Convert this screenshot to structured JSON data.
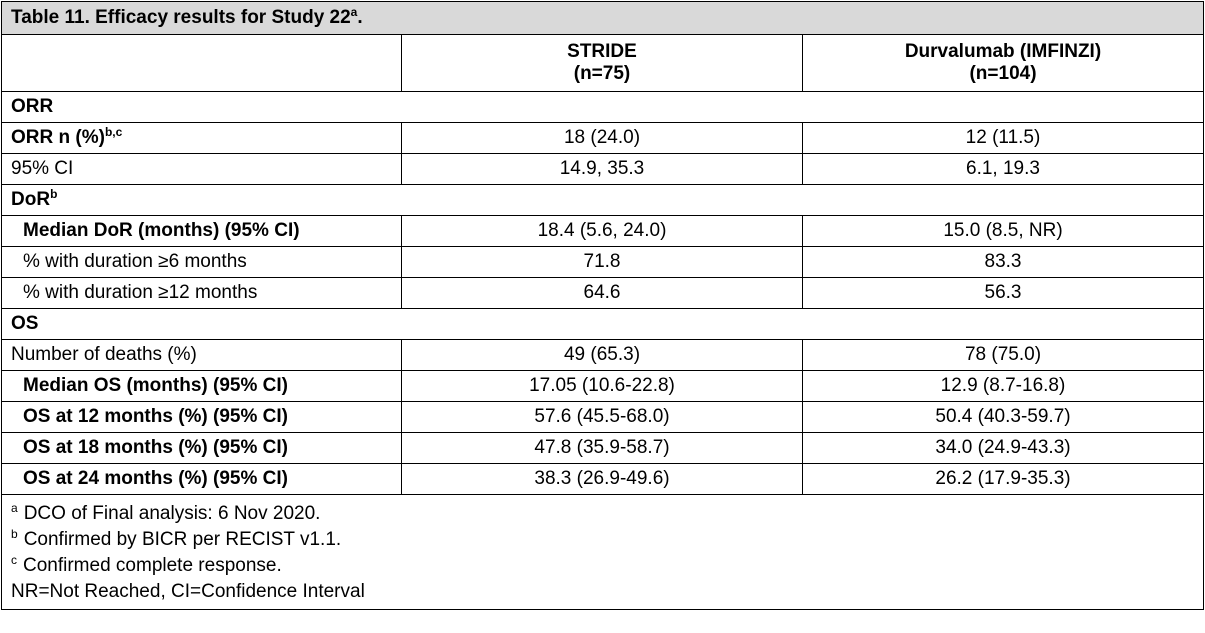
{
  "title": {
    "text": "Table 11. Efficacy results for Study 22",
    "sup": "a",
    "end": "."
  },
  "columns": [
    {
      "name": "STRIDE",
      "n": "(n=75)"
    },
    {
      "name": "Durvalumab (IMFINZI)",
      "n": "(n=104)"
    }
  ],
  "sections": {
    "orr": {
      "label": "ORR",
      "rows": [
        {
          "label": "ORR n (%)",
          "sup": "b,c",
          "v1": "18 (24.0)",
          "v2": "12 (11.5)"
        },
        {
          "label": "95% CI",
          "v1": "14.9, 35.3",
          "v2": "6.1, 19.3"
        }
      ]
    },
    "dor": {
      "label": "DoR",
      "sup": "b",
      "rows": [
        {
          "label": "Median DoR (months) (95% CI)",
          "v1": "18.4 (5.6, 24.0)",
          "v2": "15.0 (8.5, NR)"
        },
        {
          "label": "% with duration ≥6 months",
          "v1": "71.8",
          "v2": "83.3"
        },
        {
          "label": "% with duration ≥12 months",
          "v1": "64.6",
          "v2": "56.3"
        }
      ]
    },
    "os": {
      "label": "OS",
      "rows": [
        {
          "label": "Number of deaths (%)",
          "v1": "49 (65.3)",
          "v2": "78 (75.0)"
        },
        {
          "label": "Median OS (months) (95% CI)",
          "v1": "17.05 (10.6-22.8)",
          "v2": "12.9 (8.7-16.8)"
        },
        {
          "label": "OS at 12 months (%) (95% CI)",
          "v1": "57.6 (45.5-68.0)",
          "v2": "50.4 (40.3-59.7)"
        },
        {
          "label": "OS at 18 months (%) (95% CI)",
          "v1": "47.8 (35.9-58.7)",
          "v2": "34.0 (24.9-43.3)"
        },
        {
          "label": "OS at 24 months (%) (95% CI)",
          "v1": "38.3 (26.9-49.6)",
          "v2": "26.2 (17.9-35.3)"
        }
      ]
    }
  },
  "footnotes": [
    {
      "mark": "a",
      "text": "DCO of Final analysis: 6 Nov 2020."
    },
    {
      "mark": "b",
      "text": "Confirmed by BICR per RECIST v1.1."
    },
    {
      "mark": "c",
      "text": "Confirmed complete response."
    }
  ],
  "abbreviations": "NR=Not Reached, CI=Confidence Interval"
}
